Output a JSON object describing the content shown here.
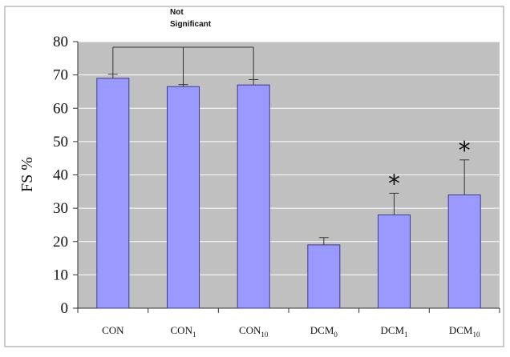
{
  "chart_data": {
    "type": "bar",
    "categories": [
      {
        "base": "CON",
        "sub": ""
      },
      {
        "base": "CON",
        "sub": "1"
      },
      {
        "base": "CON",
        "sub": "10"
      },
      {
        "base": "DCM",
        "sub": "0"
      },
      {
        "base": "DCM",
        "sub": "1"
      },
      {
        "base": "DCM",
        "sub": "10"
      }
    ],
    "values": [
      69,
      66.5,
      67,
      19,
      28,
      34
    ],
    "errors": [
      1.2,
      0.6,
      1.6,
      2.2,
      6.5,
      10.5
    ],
    "significance_markers": [
      "",
      "",
      "",
      "",
      "*",
      "*"
    ],
    "ylabel": "FS %",
    "xlabel": "",
    "ylim": [
      0,
      80
    ],
    "yticks": [
      "0",
      "10",
      "20",
      "30",
      "40",
      "50",
      "60",
      "70",
      "80"
    ],
    "grid": true,
    "annotation": {
      "line1": "Not",
      "line2": "Significant",
      "groups": [
        0,
        1,
        2
      ]
    },
    "colors": {
      "bar": "#9999ff",
      "bar_edge": "#3b3b90",
      "plot_bg": "#c0c0c0",
      "grid": "#ffffff",
      "axis": "#333333"
    }
  }
}
